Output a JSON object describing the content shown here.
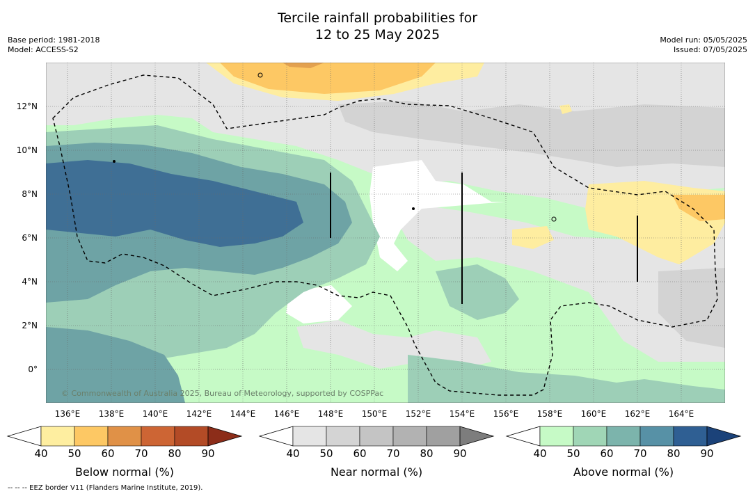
{
  "title_line1": "Tercile rainfall probabilities for",
  "title_line2": "12 to 25 May 2025",
  "base_period": "Base period: 1981-2018",
  "model": "Model: ACCESS-S2",
  "model_run": "Model run: 05/05/2025",
  "issued": "Issued: 07/05/2025",
  "copyright": "© Commonwealth of Australia 2025, Bureau of Meteorology, supported by COSPPac",
  "footnote": "--  --  -- EEZ border V11 (Flanders Marine Institute, 2019).",
  "lon_labels": [
    "136°E",
    "138°E",
    "140°E",
    "142°E",
    "144°E",
    "146°E",
    "148°E",
    "150°E",
    "152°E",
    "154°E",
    "156°E",
    "158°E",
    "160°E",
    "162°E",
    "164°E"
  ],
  "lat_labels": [
    "12°N",
    "10°N",
    "8°N",
    "6°N",
    "4°N",
    "2°N",
    "0°"
  ],
  "colorbars": [
    {
      "label": "Below normal (%)",
      "ticks": [
        "40",
        "50",
        "60",
        "70",
        "80",
        "90"
      ],
      "colors": [
        "#ffffff",
        "#feeea0",
        "#fdc864",
        "#e09147",
        "#cd6534",
        "#b34b26",
        "#8c2d19"
      ]
    },
    {
      "label": "Near normal (%)",
      "ticks": [
        "40",
        "50",
        "60",
        "70",
        "80",
        "90"
      ],
      "colors": [
        "#ffffff",
        "#e5e5e5",
        "#d4d4d4",
        "#c4c4c4",
        "#b2b2b2",
        "#a0a0a0",
        "#7d7d7d"
      ]
    },
    {
      "label": "Above normal (%)",
      "ticks": [
        "40",
        "50",
        "60",
        "70",
        "80",
        "90"
      ],
      "colors": [
        "#ffffff",
        "#c6fac6",
        "#a0d6b6",
        "#7cb4ac",
        "#5791a6",
        "#2f5f93",
        "#1b4279"
      ]
    }
  ],
  "map_colors": {
    "above_50": "#c6fac6",
    "above_60": "#9dcfb7",
    "above_70": "#6ea3a5",
    "above_80": "#3f6f95",
    "near_50": "#e5e5e5",
    "near_60": "#d3d3d3",
    "below_50": "#feeda0",
    "below_60": "#fdc864",
    "below_70": "#e3a14f",
    "eez": "#000000",
    "grid": "#6a6a6a"
  }
}
